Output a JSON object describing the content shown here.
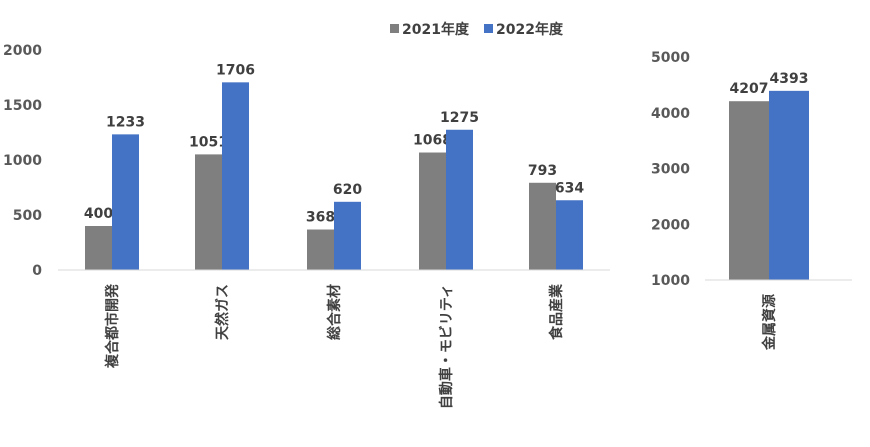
{
  "chart_data": [
    {
      "type": "bar",
      "categories": [
        "複合都市開発",
        "天然ガス",
        "総合素材",
        "自動車・モビリティ",
        "食品産業"
      ],
      "series": [
        {
          "name": "2021年度",
          "values": [
            400,
            1051,
            368,
            1068,
            793
          ],
          "color": "#7f7f7f"
        },
        {
          "name": "2022年度",
          "values": [
            1233,
            1706,
            620,
            1275,
            634
          ],
          "color": "#4472c4"
        }
      ],
      "ylim": [
        0,
        2000
      ],
      "yticks": [
        "0",
        "500",
        "1000",
        "1500",
        "2000"
      ],
      "grid": false,
      "legend": "top"
    },
    {
      "type": "bar",
      "categories": [
        "金属資源"
      ],
      "series": [
        {
          "name": "2021年度",
          "values": [
            4207
          ],
          "color": "#7f7f7f"
        },
        {
          "name": "2022年度",
          "values": [
            4393
          ],
          "color": "#4472c4"
        }
      ],
      "ylim": [
        1000,
        5000
      ],
      "yticks": [
        "1000",
        "2000",
        "3000",
        "4000",
        "5000"
      ],
      "grid": false
    }
  ],
  "legend": [
    {
      "label": "2021年度",
      "color": "#7f7f7f"
    },
    {
      "label": "2022年度",
      "color": "#4472c4"
    }
  ]
}
